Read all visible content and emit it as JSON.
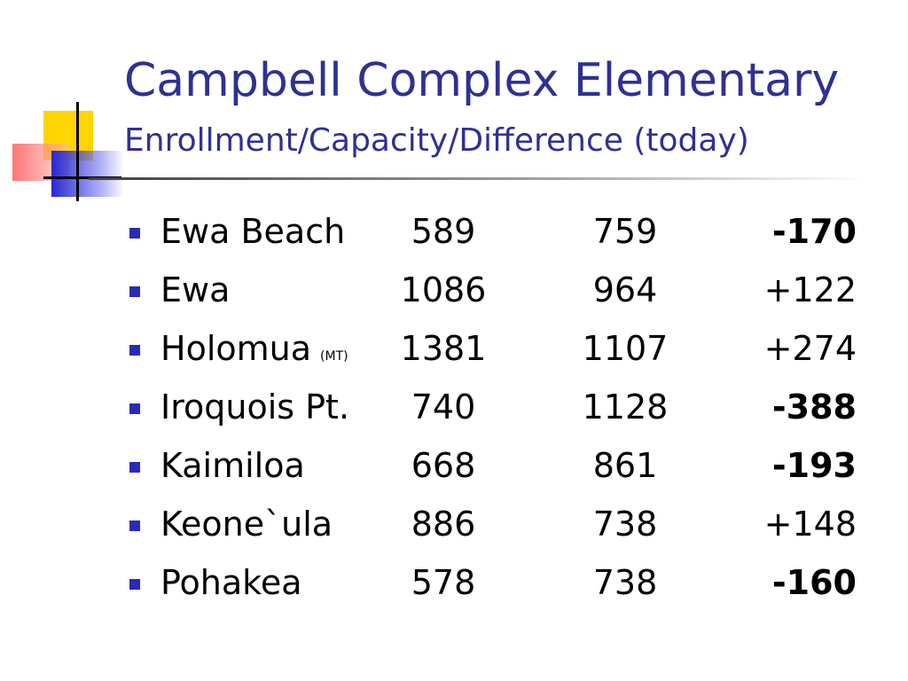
{
  "slide": {
    "title": "Campbell Complex Elementary",
    "subtitle": "Enrollment/Capacity/Difference (today)"
  },
  "rows": [
    {
      "school": "Ewa Beach",
      "tag": "",
      "enrollment": "589",
      "capacity": "759",
      "difference": "-170",
      "negative": true
    },
    {
      "school": "Ewa",
      "tag": "",
      "enrollment": "1086",
      "capacity": "964",
      "difference": "+122",
      "negative": false
    },
    {
      "school": "Holomua",
      "tag": "(MT)",
      "enrollment": "1381",
      "capacity": "1107",
      "difference": "+274",
      "negative": false
    },
    {
      "school": "Iroquois Pt.",
      "tag": "",
      "enrollment": "740",
      "capacity": "1128",
      "difference": "-388",
      "negative": true
    },
    {
      "school": "Kaimiloa",
      "tag": "",
      "enrollment": "668",
      "capacity": "861",
      "difference": "-193",
      "negative": true
    },
    {
      "school": "Keone`ula",
      "tag": "",
      "enrollment": "886",
      "capacity": "738",
      "difference": "+148",
      "negative": false
    },
    {
      "school": "Pohakea",
      "tag": "",
      "enrollment": "578",
      "capacity": "738",
      "difference": "-160",
      "negative": true
    }
  ],
  "colors": {
    "title": "#2e3192",
    "bullet": "#2a2ab8",
    "logo_yellow": "#ffd400",
    "logo_red": "#ff6e6e",
    "logo_blue": "#2828d2"
  }
}
